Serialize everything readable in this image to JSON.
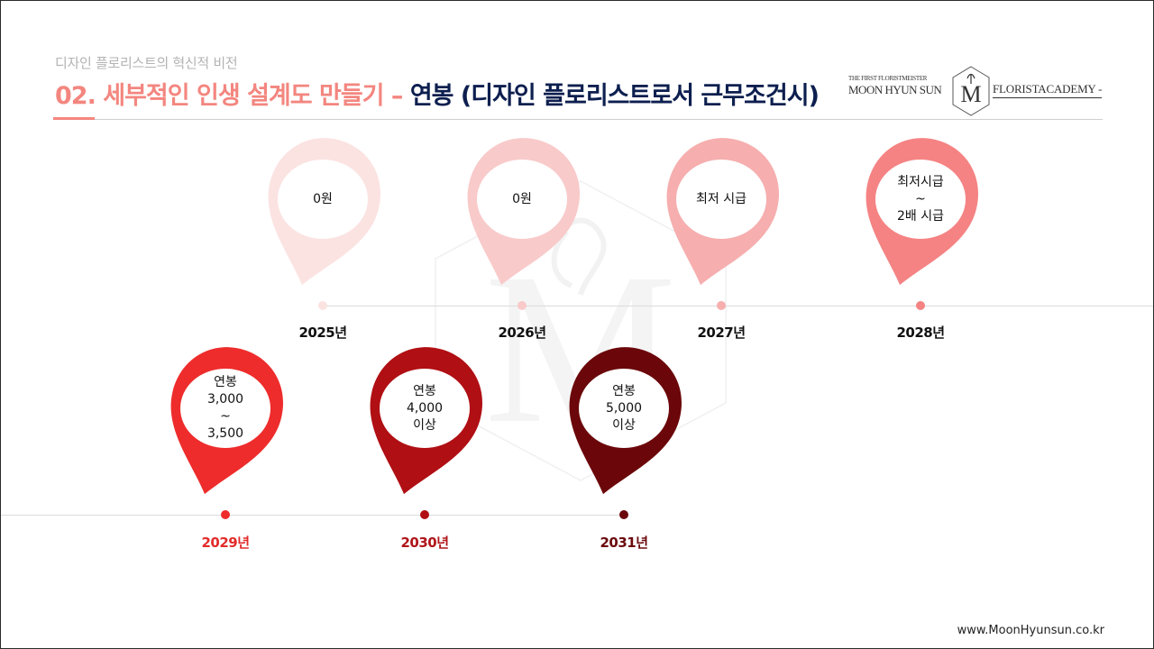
{
  "header": {
    "subtitle": "디자인 플로리스트의 혁신적 비전",
    "title_part1": "02. 세부적인 인생 설계도 만들기 – ",
    "title_part2": "연봉 (디자인 플로리스트로서 근무조건시)"
  },
  "logo": {
    "line_small": "THE FIRST FLORISTMEISTER",
    "line_name": "MOON HYUN SUN",
    "line_academy": "FLORISTACADEMY -"
  },
  "timeline": [
    {
      "year": "2025년",
      "lines": [
        "0원"
      ],
      "color": "#fbe3e2",
      "year_color": "#111111"
    },
    {
      "year": "2026년",
      "lines": [
        "0원"
      ],
      "color": "#f9caca",
      "year_color": "#111111"
    },
    {
      "year": "2027년",
      "lines": [
        "최저 시급"
      ],
      "color": "#f6aeae",
      "year_color": "#111111"
    },
    {
      "year": "2028년",
      "lines": [
        "최저시급",
        "~",
        "2배 시급"
      ],
      "color": "#f58383",
      "year_color": "#111111"
    },
    {
      "year": "2029년",
      "lines": [
        "연봉",
        "3,000",
        "~",
        "3,500"
      ],
      "color": "#ee2c2c",
      "year_color": "#e32b2b"
    },
    {
      "year": "2030년",
      "lines": [
        "연봉",
        "4,000",
        "이상"
      ],
      "color": "#b00f14",
      "year_color": "#b0161a"
    },
    {
      "year": "2031년",
      "lines": [
        "연봉",
        "5,000",
        "이상"
      ],
      "color": "#6b070a",
      "year_color": "#6b0a0d"
    }
  ],
  "footer": {
    "url": "www.MoonHyunsun.co.kr"
  }
}
